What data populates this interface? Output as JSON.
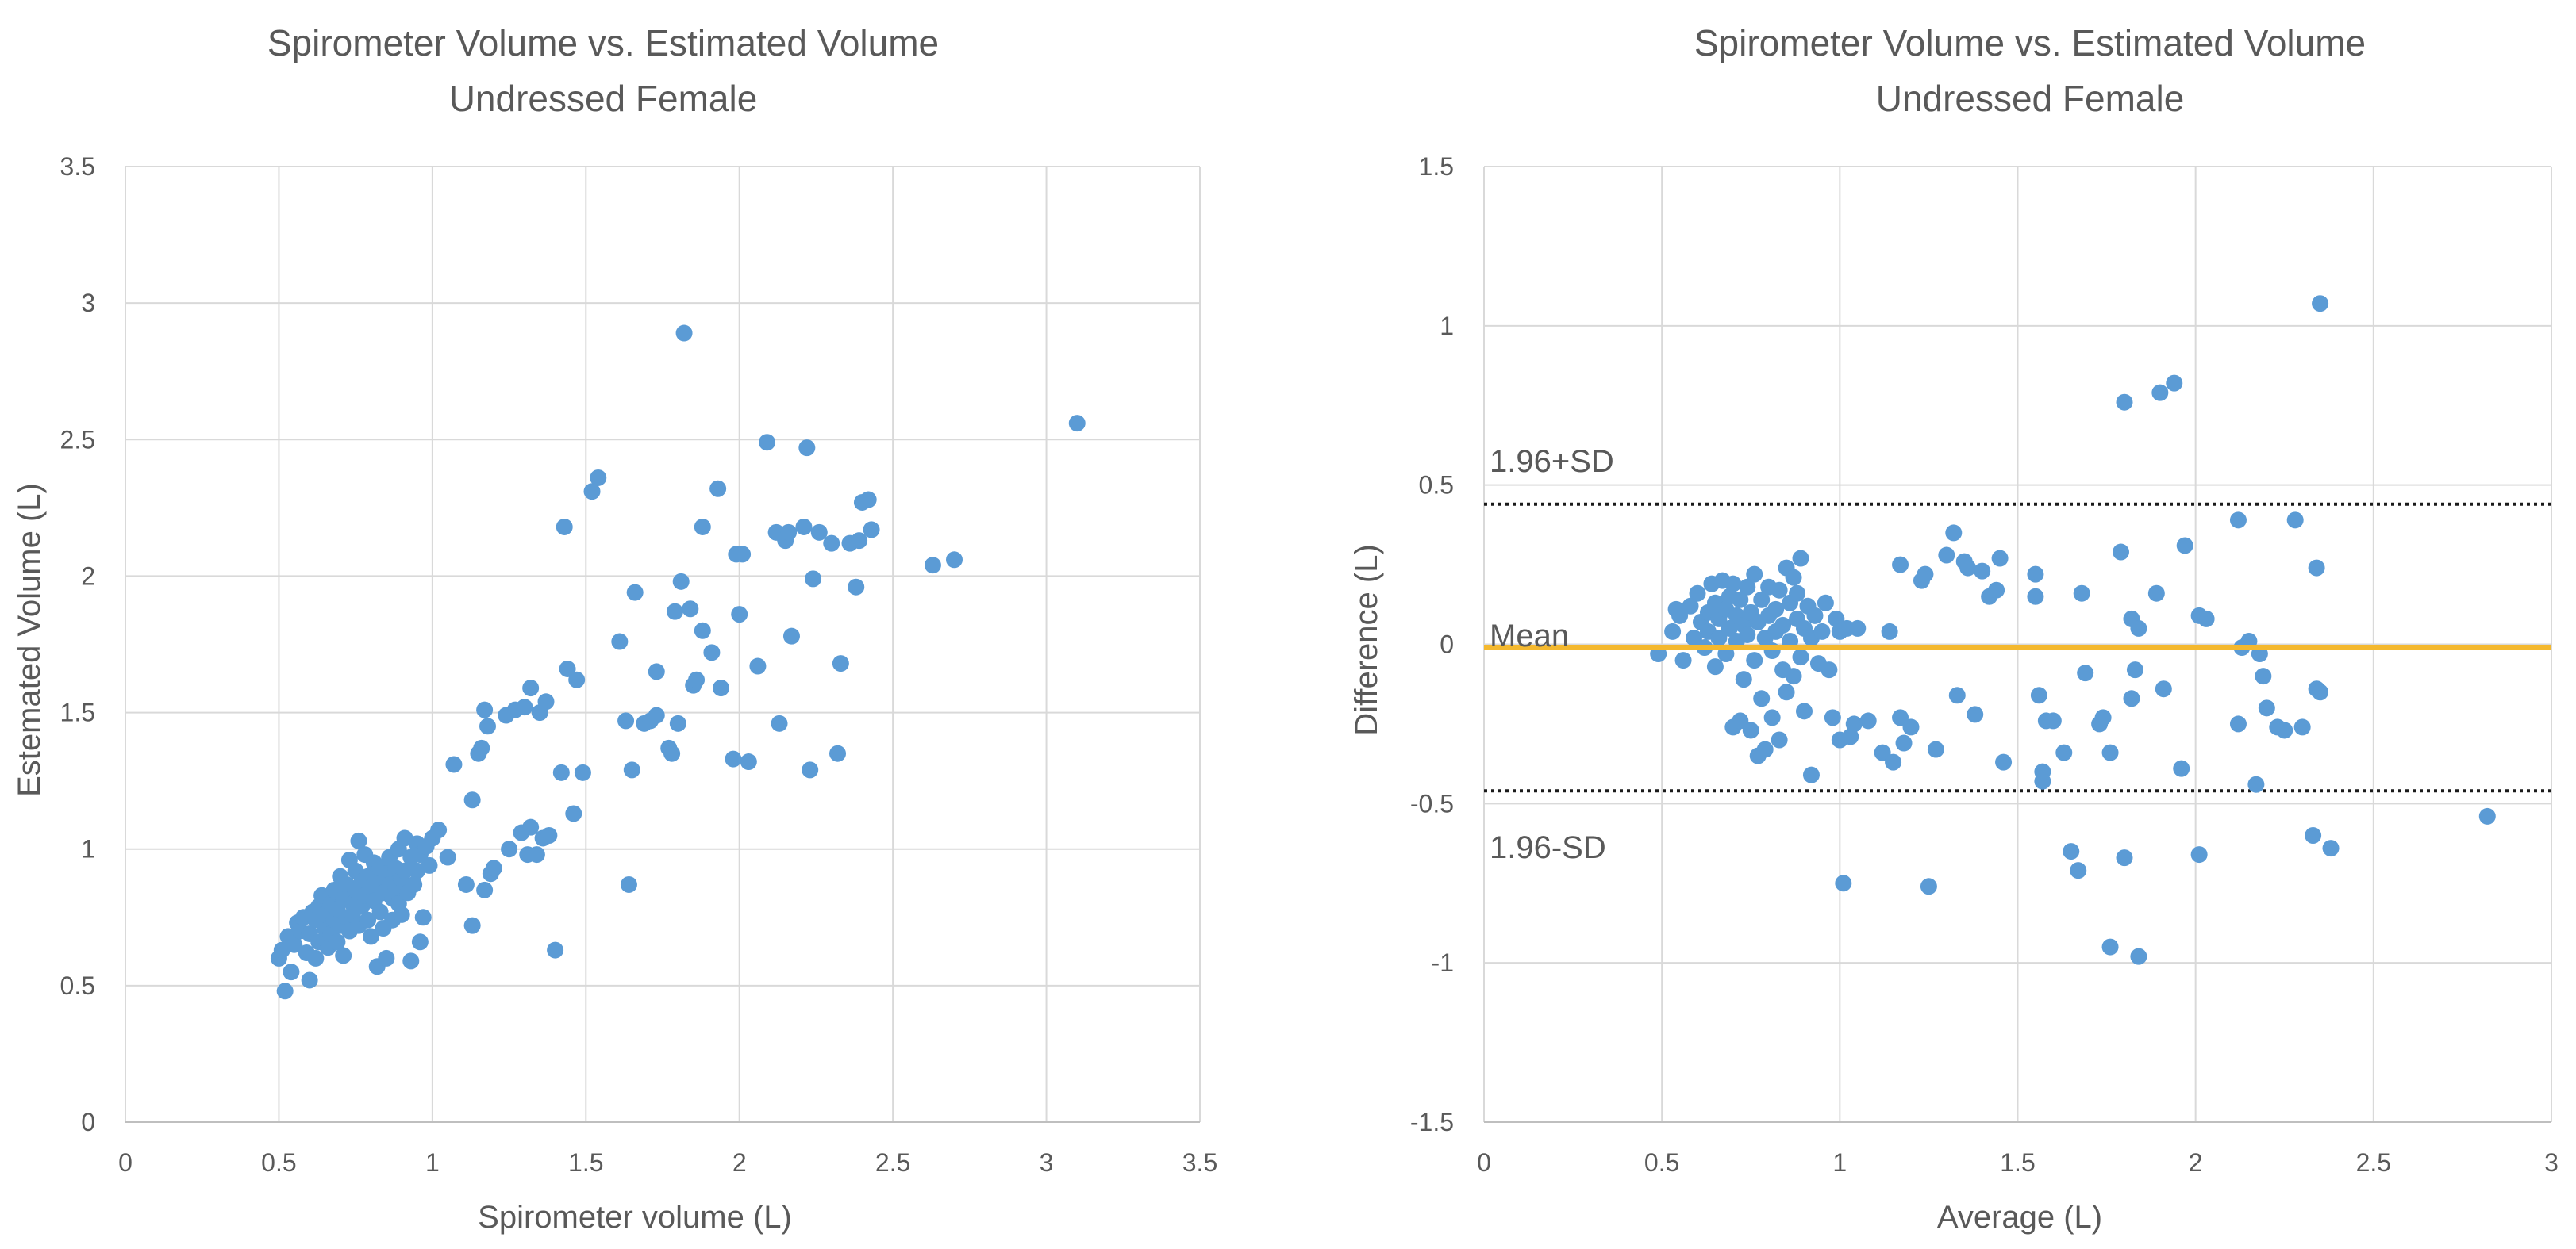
{
  "chart_data": [
    {
      "type": "scatter",
      "title_line1": "Spirometer Volume vs. Estimated Volume",
      "title_line2": "Undressed Female",
      "xlabel": "Spirometer volume (L)",
      "ylabel": "Estemated Volume (L)",
      "xlim": [
        0,
        3.5
      ],
      "ylim": [
        0,
        3.5
      ],
      "xticks": [
        "0",
        "0.5",
        "1",
        "1.5",
        "2",
        "2.5",
        "3",
        "3.5"
      ],
      "yticks": [
        "0",
        "0.5",
        "1",
        "1.5",
        "2",
        "2.5",
        "3",
        "3.5"
      ],
      "grid": true,
      "point_color": "#5b9bd5",
      "points": [
        [
          0.5,
          0.6
        ],
        [
          0.51,
          0.63
        ],
        [
          0.52,
          0.48
        ],
        [
          0.53,
          0.68
        ],
        [
          0.54,
          0.55
        ],
        [
          0.55,
          0.65
        ],
        [
          0.56,
          0.73
        ],
        [
          0.57,
          0.7
        ],
        [
          0.58,
          0.75
        ],
        [
          0.59,
          0.62
        ],
        [
          0.6,
          0.52
        ],
        [
          0.6,
          0.69
        ],
        [
          0.61,
          0.77
        ],
        [
          0.62,
          0.6
        ],
        [
          0.62,
          0.74
        ],
        [
          0.63,
          0.79
        ],
        [
          0.63,
          0.66
        ],
        [
          0.64,
          0.83
        ],
        [
          0.65,
          0.71
        ],
        [
          0.65,
          0.76
        ],
        [
          0.66,
          0.64
        ],
        [
          0.67,
          0.8
        ],
        [
          0.67,
          0.69
        ],
        [
          0.68,
          0.74
        ],
        [
          0.68,
          0.85
        ],
        [
          0.69,
          0.78
        ],
        [
          0.69,
          0.66
        ],
        [
          0.7,
          0.72
        ],
        [
          0.7,
          0.9
        ],
        [
          0.71,
          0.61
        ],
        [
          0.71,
          0.82
        ],
        [
          0.72,
          0.75
        ],
        [
          0.72,
          0.87
        ],
        [
          0.73,
          0.7
        ],
        [
          0.73,
          0.96
        ],
        [
          0.74,
          0.8
        ],
        [
          0.74,
          0.76
        ],
        [
          0.75,
          0.85
        ],
        [
          0.75,
          0.92
        ],
        [
          0.76,
          0.72
        ],
        [
          0.76,
          1.03
        ],
        [
          0.77,
          0.88
        ],
        [
          0.77,
          0.79
        ],
        [
          0.78,
          0.83
        ],
        [
          0.78,
          0.98
        ],
        [
          0.79,
          0.74
        ],
        [
          0.79,
          0.9
        ],
        [
          0.8,
          0.86
        ],
        [
          0.8,
          0.68
        ],
        [
          0.81,
          0.95
        ],
        [
          0.81,
          0.81
        ],
        [
          0.82,
          0.57
        ],
        [
          0.82,
          0.88
        ],
        [
          0.83,
          0.77
        ],
        [
          0.83,
          0.93
        ],
        [
          0.84,
          0.84
        ],
        [
          0.84,
          0.71
        ],
        [
          0.85,
          0.91
        ],
        [
          0.85,
          0.6
        ],
        [
          0.86,
          0.87
        ],
        [
          0.86,
          0.97
        ],
        [
          0.87,
          0.82
        ],
        [
          0.87,
          0.74
        ],
        [
          0.88,
          0.93
        ],
        [
          0.88,
          0.86
        ],
        [
          0.89,
          0.8
        ],
        [
          0.89,
          1.0
        ],
        [
          0.9,
          0.89
        ],
        [
          0.9,
          0.76
        ],
        [
          0.91,
          1.04
        ],
        [
          0.91,
          0.92
        ],
        [
          0.92,
          0.84
        ],
        [
          0.93,
          0.59
        ],
        [
          0.93,
          0.97
        ],
        [
          0.94,
          0.87
        ],
        [
          0.95,
          1.02
        ],
        [
          0.95,
          0.92
        ],
        [
          0.96,
          0.66
        ],
        [
          0.96,
          0.98
        ],
        [
          0.97,
          0.75
        ],
        [
          0.98,
          1.01
        ],
        [
          0.99,
          0.94
        ],
        [
          1.0,
          1.04
        ],
        [
          1.02,
          1.07
        ],
        [
          1.05,
          0.97
        ],
        [
          1.07,
          1.31
        ],
        [
          1.11,
          0.87
        ],
        [
          1.13,
          1.18
        ],
        [
          1.13,
          0.72
        ],
        [
          1.15,
          1.35
        ],
        [
          1.16,
          1.37
        ],
        [
          1.17,
          1.51
        ],
        [
          1.17,
          0.85
        ],
        [
          1.18,
          1.45
        ],
        [
          1.19,
          0.91
        ],
        [
          1.2,
          0.93
        ],
        [
          1.24,
          1.49
        ],
        [
          1.25,
          1.0
        ],
        [
          1.27,
          1.51
        ],
        [
          1.29,
          1.06
        ],
        [
          1.3,
          1.52
        ],
        [
          1.31,
          0.98
        ],
        [
          1.32,
          1.59
        ],
        [
          1.32,
          1.08
        ],
        [
          1.34,
          0.98
        ],
        [
          1.35,
          1.5
        ],
        [
          1.36,
          1.04
        ],
        [
          1.37,
          1.54
        ],
        [
          1.38,
          1.05
        ],
        [
          1.4,
          0.63
        ],
        [
          1.42,
          1.28
        ],
        [
          1.43,
          2.18
        ],
        [
          1.44,
          1.66
        ],
        [
          1.46,
          1.13
        ],
        [
          1.47,
          1.62
        ],
        [
          1.49,
          1.28
        ],
        [
          1.52,
          2.31
        ],
        [
          1.54,
          2.36
        ],
        [
          1.61,
          1.76
        ],
        [
          1.63,
          1.47
        ],
        [
          1.64,
          0.87
        ],
        [
          1.65,
          1.29
        ],
        [
          1.66,
          1.94
        ],
        [
          1.69,
          1.46
        ],
        [
          1.71,
          1.47
        ],
        [
          1.73,
          1.49
        ],
        [
          1.73,
          1.65
        ],
        [
          1.77,
          1.37
        ],
        [
          1.78,
          1.35
        ],
        [
          1.79,
          1.87
        ],
        [
          1.8,
          1.46
        ],
        [
          1.81,
          1.98
        ],
        [
          1.82,
          2.89
        ],
        [
          1.84,
          1.88
        ],
        [
          1.85,
          1.6
        ],
        [
          1.86,
          1.62
        ],
        [
          1.88,
          2.18
        ],
        [
          1.88,
          1.8
        ],
        [
          1.91,
          1.72
        ],
        [
          1.93,
          2.32
        ],
        [
          1.94,
          1.59
        ],
        [
          1.98,
          1.33
        ],
        [
          1.99,
          2.08
        ],
        [
          2.0,
          1.86
        ],
        [
          2.01,
          2.08
        ],
        [
          2.03,
          1.32
        ],
        [
          2.06,
          1.67
        ],
        [
          2.09,
          2.49
        ],
        [
          2.12,
          2.16
        ],
        [
          2.13,
          1.46
        ],
        [
          2.15,
          2.13
        ],
        [
          2.16,
          2.16
        ],
        [
          2.17,
          1.78
        ],
        [
          2.21,
          2.18
        ],
        [
          2.22,
          2.47
        ],
        [
          2.23,
          1.29
        ],
        [
          2.24,
          1.99
        ],
        [
          2.26,
          2.16
        ],
        [
          2.3,
          2.12
        ],
        [
          2.32,
          1.35
        ],
        [
          2.33,
          1.68
        ],
        [
          2.36,
          2.12
        ],
        [
          2.38,
          1.96
        ],
        [
          2.39,
          2.13
        ],
        [
          2.4,
          2.27
        ],
        [
          2.42,
          2.28
        ],
        [
          2.43,
          2.17
        ],
        [
          2.63,
          2.04
        ],
        [
          2.7,
          2.06
        ],
        [
          3.1,
          2.56
        ]
      ]
    },
    {
      "type": "scatter",
      "title_line1": "Spirometer Volume vs. Estimated Volume",
      "title_line2": "Undressed Female",
      "xlabel": "Average (L)",
      "ylabel": "Difference (L)",
      "xlim": [
        0,
        3
      ],
      "ylim": [
        -1.5,
        1.5
      ],
      "xticks": [
        "0",
        "0.5",
        "1",
        "1.5",
        "2",
        "2.5",
        "3"
      ],
      "yticks": [
        "-1.5",
        "-1",
        "-0.5",
        "0",
        "0.5",
        "1",
        "1.5"
      ],
      "grid": true,
      "point_color": "#5b9bd5",
      "mean_color": "#f4b82e",
      "mean_value": -0.01,
      "upper_loa": 0.44,
      "lower_loa": -0.46,
      "upper_label": "1.96+SD",
      "mean_label": "Mean",
      "lower_label": "1.96-SD",
      "points": [
        [
          0.49,
          -0.03
        ],
        [
          0.53,
          0.04
        ],
        [
          0.54,
          0.11
        ],
        [
          0.55,
          0.09
        ],
        [
          0.56,
          -0.05
        ],
        [
          0.58,
          0.12
        ],
        [
          0.59,
          0.02
        ],
        [
          0.6,
          0.16
        ],
        [
          0.61,
          0.07
        ],
        [
          0.62,
          -0.01
        ],
        [
          0.63,
          0.1
        ],
        [
          0.63,
          0.04
        ],
        [
          0.64,
          0.19
        ],
        [
          0.65,
          0.13
        ],
        [
          0.65,
          -0.07
        ],
        [
          0.66,
          0.08
        ],
        [
          0.66,
          0.02
        ],
        [
          0.67,
          0.2
        ],
        [
          0.68,
          0.11
        ],
        [
          0.68,
          -0.03
        ],
        [
          0.69,
          0.05
        ],
        [
          0.69,
          0.15
        ],
        [
          0.7,
          0.19
        ],
        [
          0.7,
          -0.26
        ],
        [
          0.71,
          0.09
        ],
        [
          0.71,
          0.01
        ],
        [
          0.72,
          -0.24
        ],
        [
          0.72,
          0.14
        ],
        [
          0.73,
          0.06
        ],
        [
          0.73,
          -0.11
        ],
        [
          0.74,
          0.18
        ],
        [
          0.74,
          0.03
        ],
        [
          0.75,
          -0.27
        ],
        [
          0.75,
          0.1
        ],
        [
          0.76,
          0.22
        ],
        [
          0.76,
          -0.05
        ],
        [
          0.77,
          0.07
        ],
        [
          0.77,
          -0.35
        ],
        [
          0.78,
          0.14
        ],
        [
          0.78,
          -0.17
        ],
        [
          0.79,
          0.02
        ],
        [
          0.79,
          -0.33
        ],
        [
          0.8,
          0.18
        ],
        [
          0.8,
          0.09
        ],
        [
          0.81,
          -0.02
        ],
        [
          0.81,
          -0.23
        ],
        [
          0.82,
          0.11
        ],
        [
          0.82,
          0.04
        ],
        [
          0.83,
          -0.3
        ],
        [
          0.83,
          0.17
        ],
        [
          0.84,
          0.06
        ],
        [
          0.84,
          -0.08
        ],
        [
          0.85,
          0.24
        ],
        [
          0.85,
          -0.15
        ],
        [
          0.86,
          0.13
        ],
        [
          0.86,
          0.01
        ],
        [
          0.87,
          0.21
        ],
        [
          0.87,
          -0.1
        ],
        [
          0.88,
          0.08
        ],
        [
          0.88,
          0.16
        ],
        [
          0.89,
          -0.04
        ],
        [
          0.89,
          0.27
        ],
        [
          0.9,
          0.05
        ],
        [
          0.9,
          -0.21
        ],
        [
          0.91,
          0.12
        ],
        [
          0.92,
          -0.41
        ],
        [
          0.92,
          0.02
        ],
        [
          0.93,
          0.09
        ],
        [
          0.94,
          -0.06
        ],
        [
          0.95,
          0.04
        ],
        [
          0.96,
          0.13
        ],
        [
          0.97,
          -0.08
        ],
        [
          0.98,
          -0.23
        ],
        [
          0.99,
          0.08
        ],
        [
          1.0,
          0.04
        ],
        [
          1.0,
          -0.3
        ],
        [
          1.01,
          -0.75
        ],
        [
          1.02,
          0.05
        ],
        [
          1.03,
          -0.29
        ],
        [
          1.04,
          -0.25
        ],
        [
          1.05,
          0.05
        ],
        [
          1.08,
          -0.24
        ],
        [
          1.12,
          -0.34
        ],
        [
          1.14,
          0.04
        ],
        [
          1.15,
          -0.37
        ],
        [
          1.17,
          0.25
        ],
        [
          1.17,
          -0.23
        ],
        [
          1.18,
          -0.31
        ],
        [
          1.2,
          -0.26
        ],
        [
          1.23,
          0.2
        ],
        [
          1.24,
          0.22
        ],
        [
          1.25,
          -0.76
        ],
        [
          1.27,
          -0.33
        ],
        [
          1.3,
          0.28
        ],
        [
          1.32,
          0.35
        ],
        [
          1.33,
          -0.16
        ],
        [
          1.35,
          0.26
        ],
        [
          1.36,
          0.24
        ],
        [
          1.38,
          -0.22
        ],
        [
          1.4,
          0.23
        ],
        [
          1.42,
          0.15
        ],
        [
          1.44,
          0.17
        ],
        [
          1.45,
          0.27
        ],
        [
          1.46,
          -0.37
        ],
        [
          1.55,
          0.22
        ],
        [
          1.55,
          0.15
        ],
        [
          1.56,
          -0.16
        ],
        [
          1.57,
          -0.43
        ],
        [
          1.57,
          -0.4
        ],
        [
          1.58,
          -0.24
        ],
        [
          1.6,
          -0.24
        ],
        [
          1.63,
          -0.34
        ],
        [
          1.65,
          -0.65
        ],
        [
          1.67,
          -0.71
        ],
        [
          1.68,
          0.16
        ],
        [
          1.69,
          -0.09
        ],
        [
          1.73,
          -0.25
        ],
        [
          1.74,
          -0.23
        ],
        [
          1.76,
          -0.95
        ],
        [
          1.76,
          -0.34
        ],
        [
          1.79,
          0.29
        ],
        [
          1.8,
          -0.67
        ],
        [
          1.8,
          0.76
        ],
        [
          1.82,
          -0.17
        ],
        [
          1.82,
          0.08
        ],
        [
          1.83,
          -0.08
        ],
        [
          1.84,
          -0.98
        ],
        [
          1.84,
          0.05
        ],
        [
          1.89,
          0.16
        ],
        [
          1.9,
          0.79
        ],
        [
          1.91,
          -0.14
        ],
        [
          1.94,
          0.82
        ],
        [
          1.96,
          -0.39
        ],
        [
          1.97,
          0.31
        ],
        [
          2.01,
          0.09
        ],
        [
          2.01,
          -0.66
        ],
        [
          2.03,
          0.08
        ],
        [
          2.12,
          0.39
        ],
        [
          2.12,
          -0.25
        ],
        [
          2.13,
          -0.01
        ],
        [
          2.15,
          0.01
        ],
        [
          2.17,
          -0.44
        ],
        [
          2.18,
          -0.03
        ],
        [
          2.19,
          -0.1
        ],
        [
          2.2,
          -0.2
        ],
        [
          2.23,
          -0.26
        ],
        [
          2.25,
          -0.27
        ],
        [
          2.28,
          0.39
        ],
        [
          2.3,
          -0.26
        ],
        [
          2.33,
          -0.6
        ],
        [
          2.34,
          0.24
        ],
        [
          2.34,
          -0.14
        ],
        [
          2.35,
          1.07
        ],
        [
          2.35,
          -0.15
        ],
        [
          2.38,
          -0.64
        ],
        [
          2.82,
          -0.54
        ]
      ]
    }
  ]
}
